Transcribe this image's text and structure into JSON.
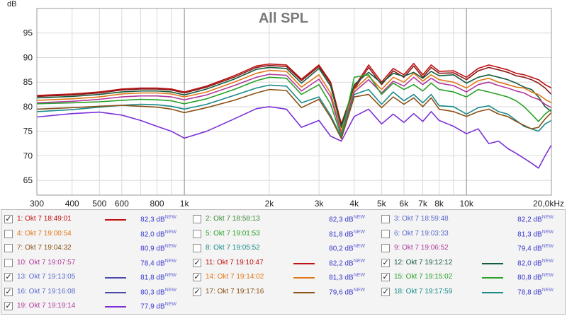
{
  "chart_data": {
    "type": "line",
    "title": "All SPL",
    "ylabel": "dB",
    "xlabel": "",
    "x_scale": "log",
    "xlim": [
      300,
      20000
    ],
    "ylim": [
      62,
      100
    ],
    "y_ticks": [
      65,
      70,
      75,
      80,
      85,
      90,
      95
    ],
    "x_ticks": [
      {
        "v": 300,
        "t": "300",
        "major": true
      },
      {
        "v": 400,
        "t": "400",
        "major": true
      },
      {
        "v": 500,
        "t": "500",
        "major": true
      },
      {
        "v": 600,
        "t": "600",
        "major": true
      },
      {
        "v": 700,
        "t": "",
        "major": false
      },
      {
        "v": 800,
        "t": "800",
        "major": true
      },
      {
        "v": 900,
        "t": "",
        "major": false
      },
      {
        "v": 1000,
        "t": "1k",
        "major": true
      },
      {
        "v": 2000,
        "t": "2k",
        "major": true
      },
      {
        "v": 3000,
        "t": "3k",
        "major": true
      },
      {
        "v": 4000,
        "t": "4k",
        "major": true
      },
      {
        "v": 5000,
        "t": "5k",
        "major": true
      },
      {
        "v": 6000,
        "t": "6k",
        "major": true
      },
      {
        "v": 7000,
        "t": "7k",
        "major": true
      },
      {
        "v": 8000,
        "t": "8k",
        "major": true
      },
      {
        "v": 9000,
        "t": "",
        "major": false
      },
      {
        "v": 10000,
        "t": "10k",
        "major": true
      },
      {
        "v": 20000,
        "t": "20,0kHz",
        "major": true
      }
    ],
    "x": [
      300,
      400,
      500,
      600,
      700,
      800,
      900,
      1000,
      1200,
      1500,
      1800,
      2000,
      2300,
      2600,
      3000,
      3300,
      3600,
      4000,
      4500,
      5000,
      5500,
      6000,
      6500,
      7000,
      7500,
      8000,
      9000,
      10000,
      11000,
      12000,
      13000,
      14000,
      15000,
      16000,
      17000,
      18000,
      19000,
      20000
    ],
    "series": [
      {
        "color": "#c01010",
        "values": [
          82.3,
          82.6,
          83.0,
          83.6,
          83.8,
          83.8,
          83.6,
          83.0,
          84.2,
          86.3,
          88.3,
          88.7,
          88.5,
          85.6,
          88.5,
          85.0,
          76.5,
          84.0,
          88.5,
          85.0,
          87.8,
          86.5,
          88.8,
          86.5,
          88.5,
          87.2,
          87.3,
          86.0,
          87.8,
          88.5,
          88.0,
          87.5,
          86.8,
          86.5,
          86.0,
          85.5,
          84.5,
          83.8
        ]
      },
      {
        "color": "#8a1a1a",
        "values": [
          82.1,
          82.4,
          82.8,
          83.4,
          83.6,
          83.6,
          83.4,
          82.8,
          84.0,
          86.0,
          88.0,
          88.4,
          88.2,
          85.3,
          88.2,
          84.7,
          76.2,
          83.6,
          88.0,
          84.5,
          87.3,
          86.0,
          88.3,
          86.0,
          88.0,
          86.8,
          86.9,
          85.5,
          87.3,
          88.0,
          87.5,
          87.0,
          86.3,
          86.0,
          85.5,
          84.8,
          83.8,
          82.5
        ]
      },
      {
        "color": "#145c3c",
        "values": [
          81.8,
          82.1,
          82.5,
          83.0,
          83.2,
          83.2,
          83.0,
          82.4,
          83.6,
          85.6,
          87.6,
          88.0,
          87.8,
          84.8,
          87.8,
          84.2,
          75.8,
          84.5,
          87.0,
          84.8,
          86.8,
          86.2,
          87.0,
          85.8,
          87.2,
          86.3,
          86.5,
          84.8,
          86.0,
          86.5,
          86.0,
          85.5,
          84.8,
          84.0,
          83.5,
          82.0,
          80.0,
          79.0
        ]
      },
      {
        "color": "#e07818",
        "values": [
          81.3,
          81.6,
          82.0,
          82.6,
          82.8,
          82.8,
          82.6,
          82.0,
          83.0,
          85.0,
          86.8,
          87.4,
          87.2,
          84.0,
          86.5,
          82.8,
          75.0,
          83.5,
          86.2,
          83.5,
          86.0,
          85.0,
          86.8,
          85.2,
          86.5,
          85.5,
          85.0,
          83.8,
          85.3,
          85.8,
          85.0,
          84.5,
          84.0,
          83.8,
          83.0,
          82.5,
          81.5,
          80.8
        ]
      },
      {
        "color": "#b03a9c",
        "values": [
          80.8,
          81.1,
          81.5,
          82.0,
          82.2,
          82.2,
          82.0,
          81.4,
          82.4,
          84.3,
          86.0,
          86.6,
          86.4,
          83.2,
          85.6,
          82.0,
          74.5,
          83.0,
          85.5,
          82.8,
          85.2,
          84.2,
          86.0,
          84.5,
          85.8,
          84.8,
          84.3,
          83.0,
          84.5,
          85.0,
          84.3,
          83.8,
          83.2,
          82.8,
          82.0,
          81.5,
          80.5,
          79.8
        ]
      },
      {
        "color": "#28a028",
        "values": [
          80.6,
          80.8,
          81.0,
          81.3,
          81.5,
          81.4,
          81.2,
          80.6,
          81.6,
          83.5,
          85.3,
          86.0,
          85.8,
          82.5,
          84.5,
          80.5,
          74.0,
          86.0,
          86.5,
          82.5,
          84.8,
          83.5,
          84.5,
          83.2,
          84.8,
          83.5,
          83.0,
          82.0,
          83.5,
          83.0,
          82.5,
          82.0,
          81.2,
          80.0,
          78.5,
          77.0,
          78.5,
          79.5
        ]
      },
      {
        "color": "#1a8a8a",
        "values": [
          79.0,
          79.4,
          79.9,
          80.3,
          80.5,
          80.4,
          80.1,
          79.5,
          80.5,
          82.3,
          83.8,
          84.4,
          84.2,
          80.8,
          82.0,
          78.2,
          73.8,
          82.5,
          83.5,
          80.5,
          83.0,
          81.2,
          82.5,
          80.8,
          82.5,
          80.2,
          80.0,
          78.5,
          79.8,
          80.2,
          79.0,
          78.5,
          77.2,
          76.0,
          75.5,
          75.0,
          76.5,
          77.2
        ]
      },
      {
        "color": "#8a5014",
        "values": [
          79.5,
          79.8,
          80.1,
          80.3,
          80.1,
          79.9,
          79.5,
          78.8,
          79.8,
          81.3,
          82.8,
          83.5,
          83.3,
          79.8,
          81.5,
          77.8,
          73.5,
          82.0,
          82.5,
          79.8,
          82.0,
          80.5,
          81.8,
          80.0,
          81.8,
          79.5,
          79.0,
          78.0,
          79.0,
          79.5,
          78.5,
          78.0,
          77.0,
          76.2,
          75.5,
          75.8,
          77.5,
          78.8
        ]
      },
      {
        "color": "#7a30d6",
        "values": [
          77.9,
          78.6,
          78.9,
          78.3,
          77.2,
          76.0,
          75.0,
          73.6,
          75.0,
          77.5,
          79.6,
          80.0,
          79.5,
          75.8,
          77.2,
          74.0,
          73.0,
          78.0,
          79.5,
          76.5,
          78.5,
          76.8,
          78.6,
          77.0,
          79.0,
          77.2,
          76.0,
          74.5,
          75.5,
          72.5,
          73.0,
          71.5,
          70.5,
          69.5,
          68.5,
          67.5,
          70.0,
          72.2
        ]
      }
    ]
  },
  "legend": {
    "rows": [
      [
        {
          "checked": true,
          "label": "1: Okt 7 18:49:01",
          "color": "#c01010",
          "swatch": "#c01010",
          "value": "82,3 dB",
          "new": "NEW"
        },
        {
          "checked": false,
          "label": "2: Okt 7 18:58:13",
          "color": "#3a8a3a",
          "swatch": "",
          "value": "82,3 dB",
          "new": "NEW"
        },
        {
          "checked": false,
          "label": "3: Okt 7 18:59:48",
          "color": "#5a6acc",
          "swatch": "",
          "value": "82,2 dB",
          "new": "NEW"
        }
      ],
      [
        {
          "checked": false,
          "label": "4: Okt 7 19:00:54",
          "color": "#e07818",
          "swatch": "",
          "value": "82,0 dB",
          "new": "NEW"
        },
        {
          "checked": false,
          "label": "5: Okt 7 19:01:53",
          "color": "#28a028",
          "swatch": "",
          "value": "81,8 dB",
          "new": "NEW"
        },
        {
          "checked": false,
          "label": "6: Okt 7 19:03:33",
          "color": "#5a6acc",
          "swatch": "",
          "value": "81,3 dB",
          "new": "NEW"
        }
      ],
      [
        {
          "checked": false,
          "label": "7: Okt 7 19:04:32",
          "color": "#8a5014",
          "swatch": "",
          "value": "80,9 dB",
          "new": "NEW"
        },
        {
          "checked": false,
          "label": "8: Okt 7 19:05:52",
          "color": "#1a8a8a",
          "swatch": "",
          "value": "80,2 dB",
          "new": "NEW"
        },
        {
          "checked": false,
          "label": "9: Okt 7 19:06:52",
          "color": "#b03a9c",
          "swatch": "",
          "value": "79,4 dB",
          "new": "NEW"
        }
      ],
      [
        {
          "checked": false,
          "label": "10: Okt 7 19:07:57",
          "color": "#b03a9c",
          "swatch": "",
          "value": "78,4 dB",
          "new": "NEW"
        },
        {
          "checked": true,
          "label": "11: Okt 7 19:10:47",
          "color": "#c01010",
          "swatch": "#c01010",
          "value": "82,2 dB",
          "new": "NEW"
        },
        {
          "checked": true,
          "label": "12: Okt 7 19:12:12",
          "color": "#145c3c",
          "swatch": "#145c3c",
          "value": "82,0 dB",
          "new": "NEW"
        }
      ],
      [
        {
          "checked": true,
          "label": "13: Okt 7 19:13:05",
          "color": "#5a6acc",
          "swatch": "#4a4aa8",
          "value": "81,8 dB",
          "new": "NEW"
        },
        {
          "checked": true,
          "label": "14: Okt 7 19:14:02",
          "color": "#e07818",
          "swatch": "#e07818",
          "value": "81,3 dB",
          "new": "NEW"
        },
        {
          "checked": true,
          "label": "15: Okt 7 19:15:02",
          "color": "#28a028",
          "swatch": "#28a028",
          "value": "80,8 dB",
          "new": "NEW"
        }
      ],
      [
        {
          "checked": true,
          "label": "16: Okt 7 19:16:08",
          "color": "#5a6acc",
          "swatch": "#4a4aa8",
          "value": "80,3 dB",
          "new": "NEW"
        },
        {
          "checked": true,
          "label": "17: Okt 7 19:17:16",
          "color": "#8a5014",
          "swatch": "#8a5014",
          "value": "79,6 dB",
          "new": "NEW"
        },
        {
          "checked": true,
          "label": "18: Okt 7 19:17:59",
          "color": "#1a8a8a",
          "swatch": "#1a8a8a",
          "value": "78,8 dB",
          "new": "NEW"
        }
      ],
      [
        {
          "checked": true,
          "label": "19: Okt 7 19:19:14",
          "color": "#b03a9c",
          "swatch": "#7a30d6",
          "value": "77,9 dB",
          "new": "NEW"
        }
      ]
    ]
  },
  "colors": {
    "grid": "#d9d9d9",
    "plot_border": "#9a9a9a",
    "title": "#7a7a7a",
    "value_text": "#3b3bcc"
  }
}
